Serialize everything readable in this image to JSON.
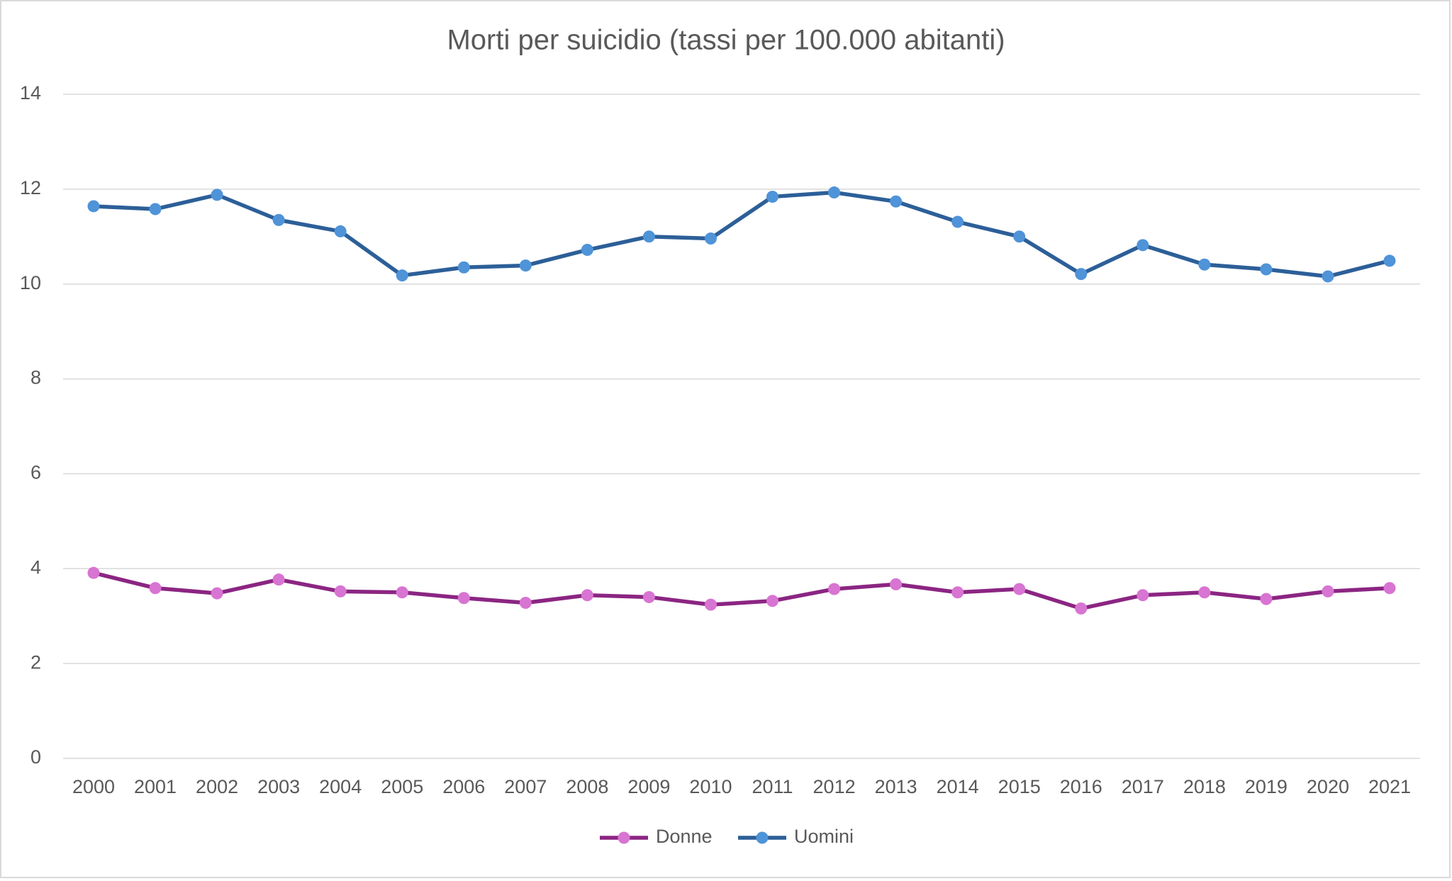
{
  "chart_data": {
    "type": "line",
    "title": "Morti per suicidio (tassi per 100.000 abitanti)",
    "categories": [
      "2000",
      "2001",
      "2002",
      "2003",
      "2004",
      "2005",
      "2006",
      "2007",
      "2008",
      "2009",
      "2010",
      "2011",
      "2012",
      "2013",
      "2014",
      "2015",
      "2016",
      "2017",
      "2018",
      "2019",
      "2020",
      "2021"
    ],
    "series": [
      {
        "name": "Donne",
        "color": "#8b2582",
        "marker_color": "#d874d2",
        "values": [
          3.91,
          3.59,
          3.48,
          3.77,
          3.52,
          3.5,
          3.38,
          3.28,
          3.44,
          3.4,
          3.24,
          3.32,
          3.57,
          3.67,
          3.5,
          3.57,
          3.16,
          3.44,
          3.5,
          3.36,
          3.52,
          3.59
        ]
      },
      {
        "name": "Uomini",
        "color": "#2c5f98",
        "marker_color": "#4f93d8",
        "values": [
          11.64,
          11.58,
          11.88,
          11.35,
          11.11,
          10.18,
          10.35,
          10.39,
          10.72,
          11.0,
          10.96,
          11.84,
          11.93,
          11.74,
          11.31,
          11.0,
          10.21,
          10.82,
          10.41,
          10.31,
          10.16,
          10.49
        ]
      }
    ],
    "ylim": [
      0,
      14
    ],
    "yticks": [
      0,
      2,
      4,
      6,
      8,
      10,
      12,
      14
    ],
    "grid": true,
    "legend": "bottom"
  }
}
